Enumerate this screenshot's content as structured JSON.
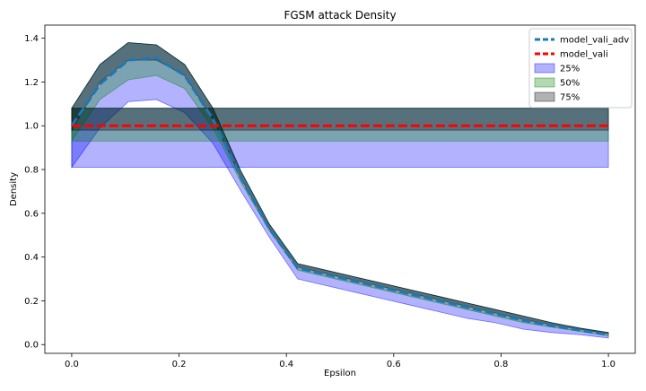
{
  "chart_data": {
    "type": "line",
    "title": "FGSM attack Density",
    "xlabel": "Epsilon",
    "ylabel": "Density",
    "xlim": [
      -0.05,
      1.05
    ],
    "ylim": [
      -0.04,
      1.46
    ],
    "x_ticks": [
      0.0,
      0.2,
      0.4,
      0.6,
      0.8,
      1.0
    ],
    "x_tick_labels": [
      "0.0",
      "0.2",
      "0.4",
      "0.6",
      "0.8",
      "1.0"
    ],
    "y_ticks": [
      0.0,
      0.2,
      0.4,
      0.6,
      0.8,
      1.0,
      1.2,
      1.4
    ],
    "y_tick_labels": [
      "0.0",
      "0.2",
      "0.4",
      "0.6",
      "0.8",
      "1.0",
      "1.2",
      "1.4"
    ],
    "grid": false,
    "legend_position": "top-right",
    "x": [
      0.0,
      0.0526,
      0.1053,
      0.1579,
      0.2105,
      0.2632,
      0.3158,
      0.3684,
      0.4211,
      0.4737,
      0.5263,
      0.5789,
      0.6316,
      0.6842,
      0.7368,
      0.7895,
      0.8421,
      0.8947,
      0.9474,
      1.0
    ],
    "series": [
      {
        "name": "model_vali_adv",
        "style": "dashed",
        "color": "#1f77b4",
        "values": [
          1.0,
          1.19,
          1.3,
          1.31,
          1.23,
          1.03,
          0.76,
          0.53,
          0.35,
          0.32,
          0.29,
          0.26,
          0.23,
          0.2,
          0.17,
          0.14,
          0.11,
          0.085,
          0.065,
          0.045
        ]
      },
      {
        "name": "model_vali",
        "style": "dashed",
        "color": "#ff0000",
        "values": [
          1.0,
          1.0,
          1.0,
          1.0,
          1.0,
          1.0,
          1.0,
          1.0,
          1.0,
          1.0,
          1.0,
          1.0,
          1.0,
          1.0,
          1.0,
          1.0,
          1.0,
          1.0,
          1.0,
          1.0
        ]
      }
    ],
    "bands": [
      {
        "name": "25%",
        "color": "#0000ff",
        "opacity": 0.3,
        "curve_lower": [
          0.81,
          0.99,
          1.11,
          1.12,
          1.06,
          0.92,
          0.7,
          0.49,
          0.3,
          0.27,
          0.24,
          0.21,
          0.18,
          0.15,
          0.12,
          0.1,
          0.07,
          0.055,
          0.045,
          0.03
        ],
        "curve_upper": [
          1.08,
          1.28,
          1.38,
          1.37,
          1.28,
          1.08,
          0.79,
          0.55,
          0.37,
          0.34,
          0.31,
          0.28,
          0.25,
          0.22,
          0.19,
          0.16,
          0.13,
          0.1,
          0.075,
          0.055
        ],
        "flat_lower": 0.81,
        "flat_upper": 1.08
      },
      {
        "name": "50%",
        "color": "#008000",
        "opacity": 0.3,
        "curve_lower": [
          0.93,
          1.12,
          1.21,
          1.23,
          1.17,
          0.99,
          0.74,
          0.52,
          0.34,
          0.31,
          0.28,
          0.25,
          0.22,
          0.19,
          0.16,
          0.13,
          0.1,
          0.08,
          0.06,
          0.04
        ],
        "curve_upper": [
          1.08,
          1.28,
          1.38,
          1.37,
          1.28,
          1.08,
          0.79,
          0.55,
          0.37,
          0.34,
          0.31,
          0.28,
          0.25,
          0.22,
          0.19,
          0.16,
          0.13,
          0.1,
          0.075,
          0.055
        ],
        "flat_lower": 0.93,
        "flat_upper": 1.08
      },
      {
        "name": "75%",
        "color": "#000000",
        "opacity": 0.3,
        "curve_lower": [
          0.98,
          1.2,
          1.3,
          1.3,
          1.23,
          1.03,
          0.76,
          0.53,
          0.355,
          0.325,
          0.295,
          0.265,
          0.235,
          0.205,
          0.175,
          0.145,
          0.115,
          0.09,
          0.07,
          0.05
        ],
        "curve_upper": [
          1.08,
          1.28,
          1.38,
          1.37,
          1.28,
          1.08,
          0.79,
          0.55,
          0.37,
          0.34,
          0.31,
          0.28,
          0.25,
          0.22,
          0.19,
          0.16,
          0.13,
          0.1,
          0.075,
          0.055
        ],
        "flat_lower": 0.98,
        "flat_upper": 1.08
      }
    ]
  }
}
